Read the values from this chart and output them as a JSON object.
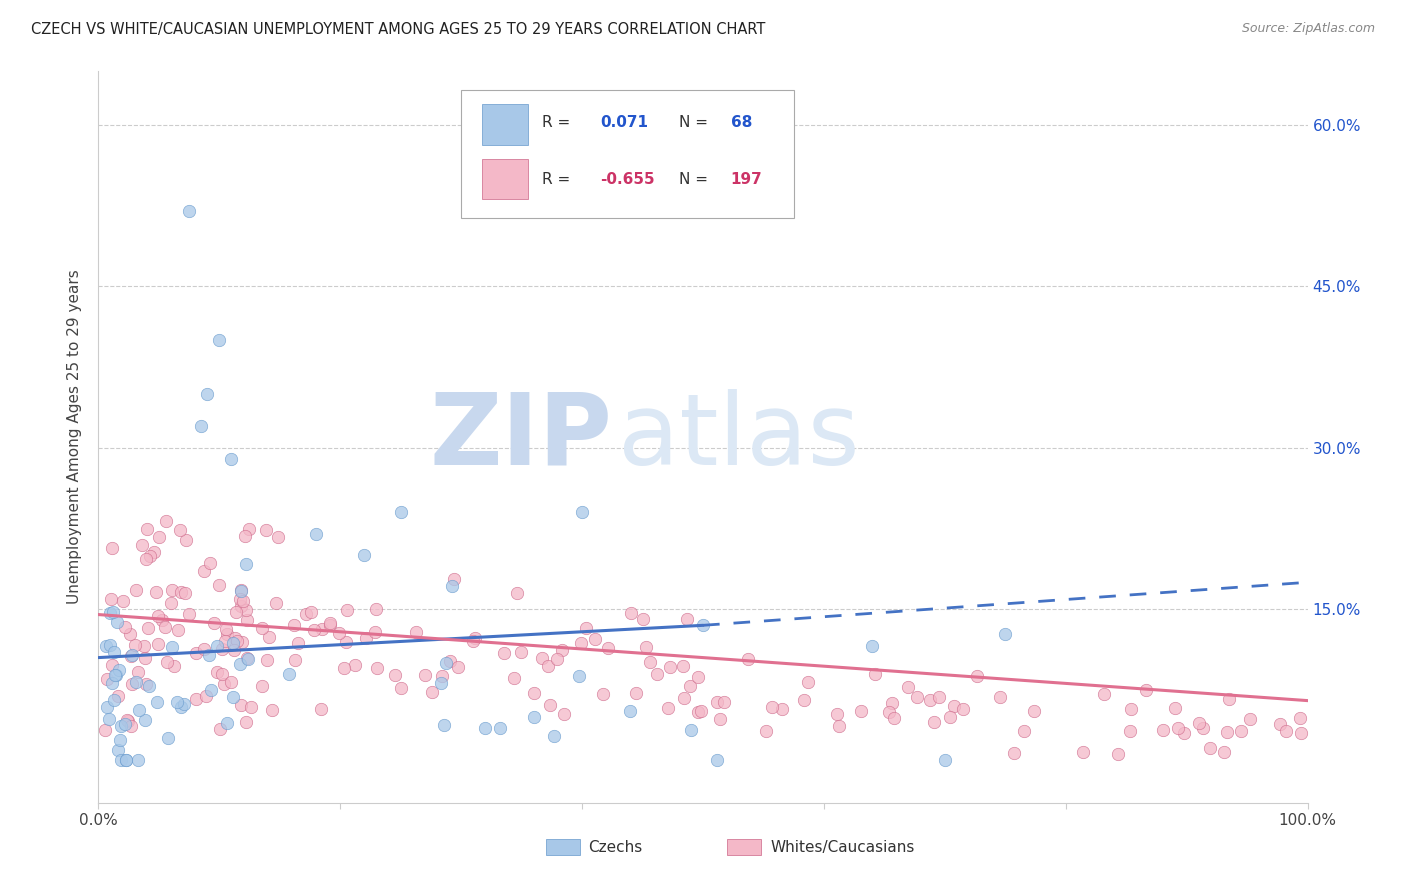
{
  "title": "CZECH VS WHITE/CAUCASIAN UNEMPLOYMENT AMONG AGES 25 TO 29 YEARS CORRELATION CHART",
  "source": "Source: ZipAtlas.com",
  "ylabel": "Unemployment Among Ages 25 to 29 years",
  "ytick_labels": [
    "60.0%",
    "45.0%",
    "30.0%",
    "15.0%"
  ],
  "ytick_values": [
    0.6,
    0.45,
    0.3,
    0.15
  ],
  "color_blue": "#a8c8e8",
  "color_blue_dark": "#4472C4",
  "color_blue_edge": "#6699cc",
  "color_pink": "#f4b8c8",
  "color_pink_dark": "#e07090",
  "color_pink_edge": "#cc6688",
  "color_blue_text": "#2255cc",
  "color_pink_text": "#cc3366",
  "watermark_color": "#dce8f5",
  "xlim": [
    0.0,
    1.0
  ],
  "ylim": [
    -0.03,
    0.65
  ],
  "czech_regression_x0": 0.0,
  "czech_regression_y0": 0.105,
  "czech_regression_x1_solid": 0.5,
  "czech_regression_y1_solid": 0.135,
  "czech_regression_x1_dash": 1.0,
  "czech_regression_y1_dash": 0.175,
  "white_regression_x0": 0.0,
  "white_regression_y0": 0.145,
  "white_regression_x1": 1.0,
  "white_regression_y1": 0.065
}
